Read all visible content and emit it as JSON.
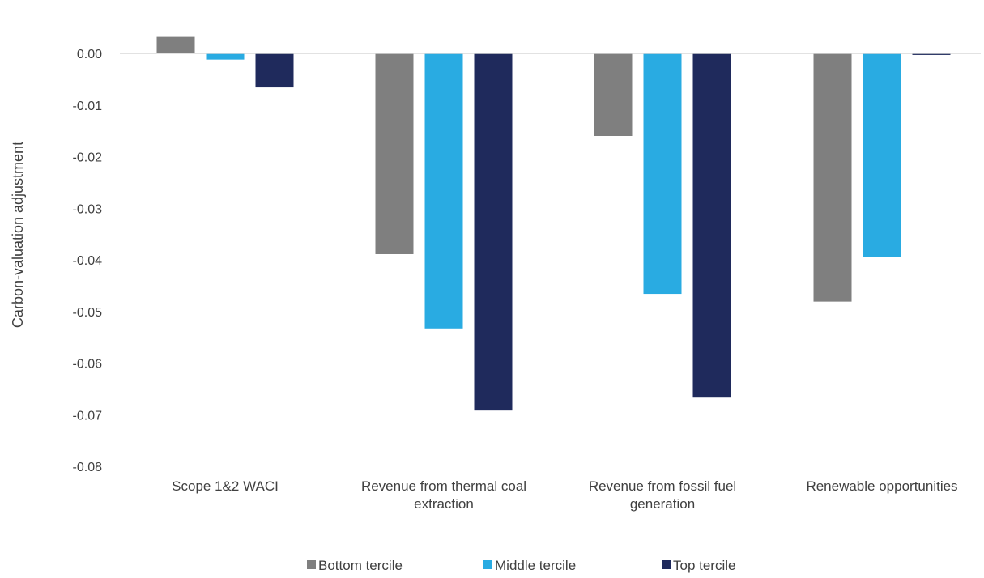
{
  "chart_data": {
    "type": "bar",
    "title": "",
    "xlabel": "",
    "ylabel": "Carbon-valuation adjustment",
    "ylim": [
      -0.08,
      0.0
    ],
    "yticks": [
      0.0,
      -0.01,
      -0.02,
      -0.03,
      -0.04,
      -0.05,
      -0.06,
      -0.07,
      -0.08
    ],
    "ytick_labels": [
      "0.00",
      "-0.01",
      "-0.02",
      "-0.03",
      "-0.04",
      "-0.05",
      "-0.06",
      "-0.07",
      "-0.08"
    ],
    "grid": false,
    "legend_position": "bottom",
    "categories": [
      [
        "Scope 1&2 WACI"
      ],
      [
        "Revenue from thermal coal",
        "extraction"
      ],
      [
        "Revenue from fossil fuel",
        "generation"
      ],
      [
        "Renewable opportunities"
      ]
    ],
    "series": [
      {
        "name": "Bottom tercile",
        "color": "#7f7f7f",
        "values": [
          0.0032,
          -0.0389,
          -0.016,
          -0.0481
        ]
      },
      {
        "name": "Middle tercile",
        "color": "#29abe2",
        "values": [
          -0.0012,
          -0.0533,
          -0.0466,
          -0.0395
        ]
      },
      {
        "name": "Top tercile",
        "color": "#1f2a5c",
        "values": [
          -0.0066,
          -0.0692,
          -0.0667,
          -0.0003
        ]
      }
    ],
    "axis_color": "#d9d9d9"
  }
}
